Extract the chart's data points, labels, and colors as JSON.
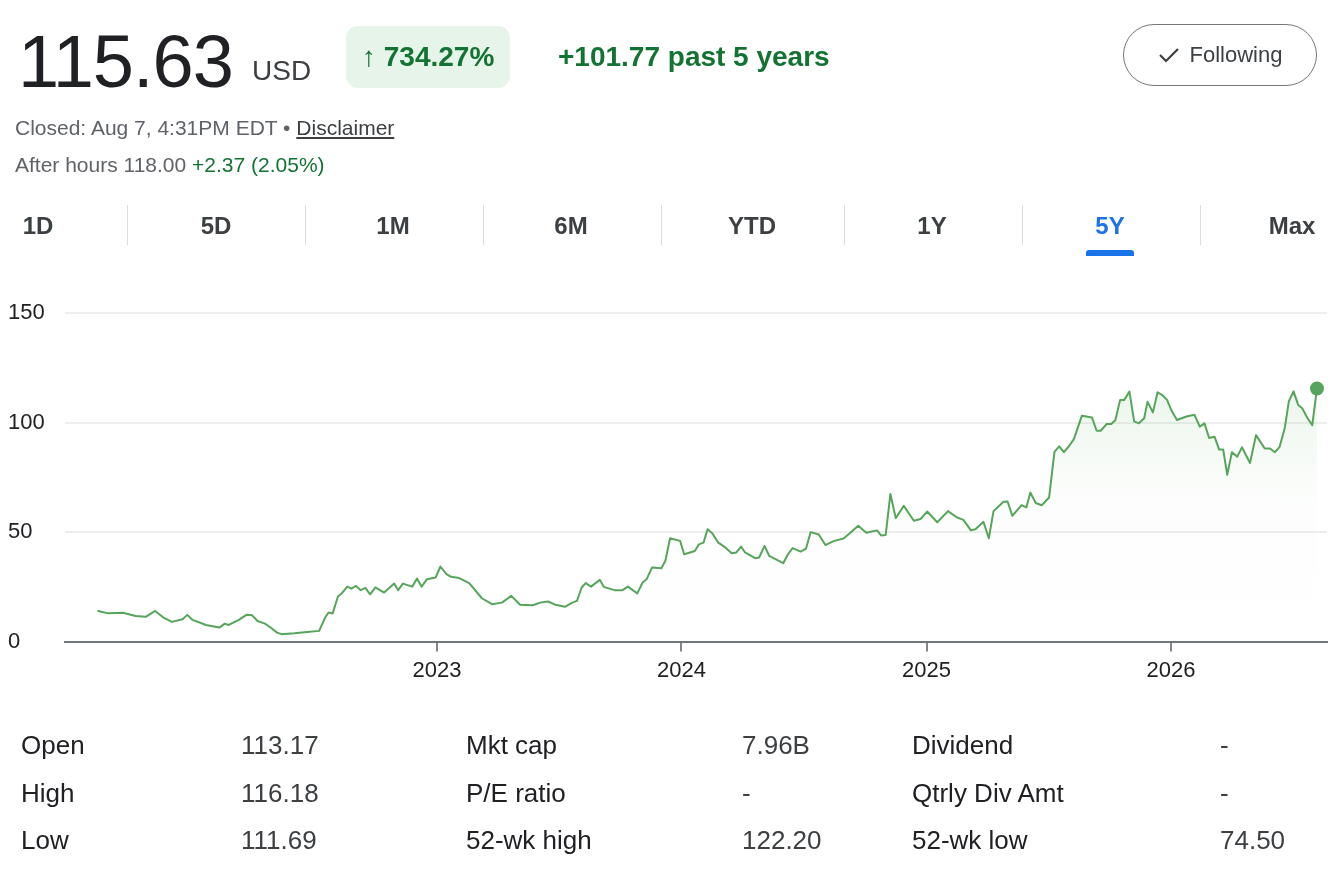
{
  "chart_data": {
    "type": "area",
    "title": "115.63",
    "annotations": [
      "USD",
      "↑ 734.27%",
      "+101.77 past 5 years",
      "Following",
      "Closed: Aug 7, 4:31PM EDT •",
      "Disclaimer",
      "After hours 118.00",
      "+2.37 (2.05%)",
      "1D",
      "5D",
      "1M",
      "6M",
      "YTD",
      "1Y",
      "5Y",
      "Max",
      "Open",
      "113.17",
      "Mkt cap",
      "7.96B",
      "Dividend",
      "-",
      "High",
      "116.18",
      "P/E ratio",
      "-",
      "Qtrly Div Amt",
      "-",
      "Low",
      "111.69",
      "52-wk high",
      "122.20",
      "52-wk low",
      "74.50"
    ],
    "x": [
      "2021-08-13",
      "2021-08-28",
      "2021-09-19",
      "2021-10-08",
      "2021-10-23",
      "2021-11-06",
      "2021-11-18",
      "2021-12-01",
      "2021-12-17",
      "2021-12-24",
      "2022-01-01",
      "2022-01-21",
      "2022-02-10",
      "2022-02-18",
      "2022-02-24",
      "2022-03-11",
      "2022-03-23",
      "2022-03-31",
      "2022-04-08",
      "2022-04-19",
      "2022-04-29",
      "2022-05-07",
      "2022-05-14",
      "2022-06-02",
      "2022-06-21",
      "2022-07-09",
      "2022-07-18",
      "2022-07-23",
      "2022-07-29",
      "2022-08-06",
      "2022-08-12",
      "2022-08-20",
      "2022-08-26",
      "2022-09-02",
      "2022-09-09",
      "2022-09-16",
      "2022-09-23",
      "2022-10-01",
      "2022-10-14",
      "2022-10-29",
      "2022-11-04",
      "2022-11-11",
      "2022-11-25",
      "2022-12-02",
      "2022-12-09",
      "2022-12-17",
      "2022-12-30",
      "2023-01-06",
      "2023-01-15",
      "2023-01-22",
      "2023-02-03",
      "2023-02-18",
      "2023-03-09",
      "2023-03-24",
      "2023-04-08",
      "2023-04-22",
      "2023-05-05",
      "2023-05-24",
      "2023-06-04",
      "2023-06-16",
      "2023-06-27",
      "2023-07-11",
      "2023-07-22",
      "2023-07-29",
      "2023-08-05",
      "2023-08-11",
      "2023-08-19",
      "2023-09-01",
      "2023-09-07",
      "2023-09-23",
      "2023-10-05",
      "2023-10-13",
      "2023-10-27",
      "2023-11-04",
      "2023-11-10",
      "2023-11-18",
      "2023-12-02",
      "2023-12-08",
      "2023-12-15",
      "2023-12-30",
      "2024-01-05",
      "2024-01-21",
      "2024-01-27",
      "2024-02-03",
      "2024-02-09",
      "2024-02-16",
      "2024-02-25",
      "2024-03-07",
      "2024-03-16",
      "2024-03-23",
      "2024-03-30",
      "2024-04-05",
      "2024-04-20",
      "2024-04-26",
      "2024-05-04",
      "2024-05-11",
      "2024-06-01",
      "2024-06-08",
      "2024-06-15",
      "2024-06-27",
      "2024-07-05",
      "2024-07-12",
      "2024-07-24",
      "2024-08-03",
      "2024-08-15",
      "2024-08-30",
      "2024-09-08",
      "2024-09-21",
      "2024-10-03",
      "2024-10-19",
      "2024-10-25",
      "2024-11-01",
      "2024-11-08",
      "2024-11-16",
      "2024-11-28",
      "2024-12-13",
      "2024-12-23",
      "2025-01-02",
      "2025-01-17",
      "2025-02-02",
      "2025-02-15",
      "2025-02-25",
      "2025-03-08",
      "2025-03-15",
      "2025-03-27",
      "2025-04-04",
      "2025-04-11",
      "2025-04-26",
      "2025-05-02",
      "2025-05-09",
      "2025-05-23",
      "2025-05-30",
      "2025-06-05",
      "2025-06-13",
      "2025-06-22",
      "2025-07-03",
      "2025-07-11",
      "2025-07-18",
      "2025-07-25",
      "2025-08-01",
      "2025-08-09",
      "2025-08-21",
      "2025-09-05",
      "2025-09-12",
      "2025-09-18",
      "2025-09-27",
      "2025-10-04",
      "2025-10-10",
      "2025-10-17",
      "2025-10-23",
      "2025-10-31",
      "2025-11-07",
      "2025-11-14",
      "2025-11-22",
      "2025-11-27",
      "2025-12-05",
      "2025-12-12",
      "2025-12-19",
      "2025-12-26",
      "2026-01-02",
      "2026-01-10",
      "2026-01-24",
      "2026-02-05",
      "2026-02-13",
      "2026-02-20",
      "2026-02-27",
      "2026-03-07",
      "2026-03-14",
      "2026-03-20",
      "2026-03-26",
      "2026-04-02",
      "2026-04-10",
      "2026-04-17",
      "2026-04-29",
      "2026-05-08",
      "2026-05-21",
      "2026-05-29",
      "2026-06-05",
      "2026-06-12",
      "2026-06-20",
      "2026-06-26",
      "2026-07-03",
      "2026-07-10",
      "2026-07-16",
      "2026-07-24",
      "2026-07-31",
      "2026-08-07"
    ],
    "series": [
      {
        "color": "#57a55a",
        "values": [
          14.0,
          12.9,
          13.2,
          11.7,
          11.3,
          14.0,
          11.1,
          9.0,
          10.2,
          12.2,
          9.9,
          7.6,
          6.4,
          8.2,
          7.6,
          9.9,
          12.3,
          12.0,
          9.4,
          8.2,
          6.1,
          4.1,
          3.4,
          3.8,
          4.4,
          4.9,
          11.0,
          13.3,
          12.8,
          20.6,
          22.1,
          25.1,
          24.2,
          25.4,
          23.5,
          24.5,
          21.6,
          24.8,
          22.4,
          26.5,
          23.5,
          26.5,
          25.1,
          28.8,
          25.1,
          28.5,
          29.3,
          34.3,
          30.8,
          29.6,
          29.0,
          26.7,
          19.8,
          17.1,
          17.8,
          20.9,
          16.8,
          16.6,
          17.8,
          18.3,
          16.8,
          15.9,
          17.8,
          18.6,
          24.7,
          26.7,
          25.1,
          28.2,
          25.0,
          23.5,
          23.5,
          25.1,
          22.0,
          27.0,
          28.5,
          33.8,
          33.5,
          36.9,
          47.2,
          46.0,
          39.9,
          41.4,
          44.4,
          45.2,
          51.3,
          49.5,
          45.2,
          42.9,
          40.4,
          40.7,
          43.4,
          40.7,
          38.1,
          38.4,
          43.7,
          39.2,
          35.8,
          39.9,
          42.7,
          41.1,
          42.5,
          50.0,
          48.9,
          44.1,
          45.9,
          47.1,
          49.4,
          52.9,
          49.7,
          50.8,
          48.5,
          48.7,
          67.4,
          56.4,
          62.0,
          55.2,
          56.0,
          59.4,
          54.5,
          59.6,
          56.8,
          55.6,
          50.9,
          51.3,
          54.7,
          47.2,
          59.6,
          63.9,
          64.0,
          57.5,
          62.3,
          61.3,
          68.1,
          63.3,
          62.3,
          65.8,
          86.7,
          89.2,
          86.5,
          89.0,
          92.5,
          103.2,
          102.4,
          96.3,
          96.3,
          99.4,
          99.4,
          101.2,
          110.3,
          110.3,
          114.2,
          100.6,
          99.7,
          102.0,
          109.6,
          104.7,
          113.9,
          112.6,
          110.5,
          105.4,
          101.2,
          102.8,
          103.6,
          98.2,
          99.7,
          93.0,
          93.6,
          87.7,
          87.7,
          76.2,
          86.5,
          84.5,
          88.8,
          81.6,
          94.3,
          88.2,
          88.2,
          86.5,
          88.8,
          97.6,
          109.7,
          114.3,
          108.1,
          106.6,
          102.0,
          98.9,
          115.63
        ]
      },
      {
        "type": "scatter",
        "color": "#57a55a",
        "marker": "circle",
        "x": [
          "2026-08-07"
        ],
        "values": [
          115.63
        ]
      }
    ],
    "xlim": [
      "2021-06-24",
      "2026-08-22"
    ],
    "xticks": [
      "2023",
      "2024",
      "2025",
      "2026"
    ],
    "ylim": [
      0,
      150
    ],
    "yticks": [
      0,
      50,
      100,
      150
    ],
    "grid": "y"
  }
}
